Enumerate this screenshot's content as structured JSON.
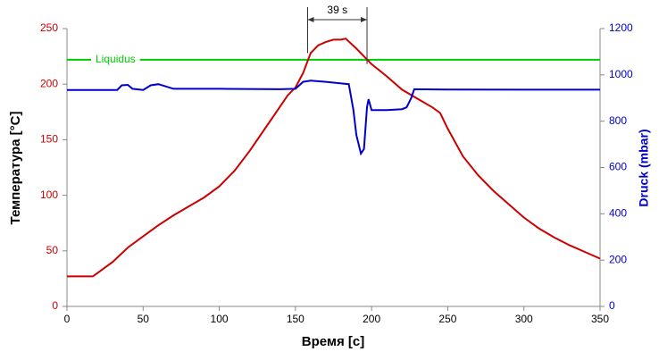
{
  "chart_data": {
    "type": "line",
    "x_label": "Время [c]",
    "y_label": "Температура [°C]",
    "y2_label": "Druck (mbar)",
    "xlim": [
      0,
      350
    ],
    "xticks": [
      0,
      50,
      100,
      150,
      200,
      250,
      300,
      350
    ],
    "ylim": [
      0,
      250
    ],
    "yticks": [
      0,
      50,
      100,
      150,
      200,
      250
    ],
    "y2lim": [
      0,
      1200
    ],
    "y2ticks": [
      0,
      200,
      400,
      600,
      800,
      1000,
      1200
    ],
    "y_color": "#cc0000",
    "y2_color": "#0000cc",
    "grid": false,
    "reference_line": {
      "label": "Liquidus",
      "value": 222,
      "color": "#00cc00"
    },
    "annotations": [
      {
        "text": "39 s",
        "x_start": 158,
        "x_end": 197
      }
    ],
    "series": [
      {
        "name": "Температура",
        "color": "#cc0000",
        "x": [
          0,
          10,
          17,
          20,
          30,
          40,
          50,
          60,
          70,
          80,
          90,
          100,
          110,
          120,
          130,
          140,
          145,
          150,
          155,
          160,
          165,
          170,
          175,
          180,
          183,
          190,
          200,
          210,
          220,
          230,
          240,
          245,
          250,
          260,
          270,
          280,
          290,
          300,
          310,
          320,
          330,
          340,
          350
        ],
        "values": [
          27,
          27,
          27,
          30,
          40,
          53,
          63,
          73,
          82,
          90,
          98,
          108,
          122,
          140,
          160,
          180,
          190,
          197,
          210,
          228,
          235,
          238,
          240,
          240,
          241,
          232,
          218,
          207,
          195,
          187,
          179,
          174,
          160,
          135,
          118,
          104,
          92,
          80,
          70,
          62,
          55,
          49,
          43
        ]
      },
      {
        "name": "Druck",
        "color": "#0000cc",
        "axis": "y2",
        "x": [
          0,
          33,
          36,
          40,
          43,
          50,
          55,
          60,
          65,
          70,
          100,
          140,
          150,
          155,
          160,
          170,
          180,
          185,
          188,
          190,
          193,
          195,
          197,
          198,
          200,
          210,
          220,
          223,
          226,
          228,
          250,
          300,
          350
        ],
        "values": [
          935,
          935,
          955,
          957,
          940,
          935,
          955,
          960,
          950,
          940,
          940,
          938,
          940,
          970,
          975,
          970,
          963,
          960,
          850,
          740,
          660,
          680,
          860,
          895,
          848,
          848,
          852,
          860,
          900,
          938,
          937,
          936,
          936
        ]
      }
    ]
  }
}
